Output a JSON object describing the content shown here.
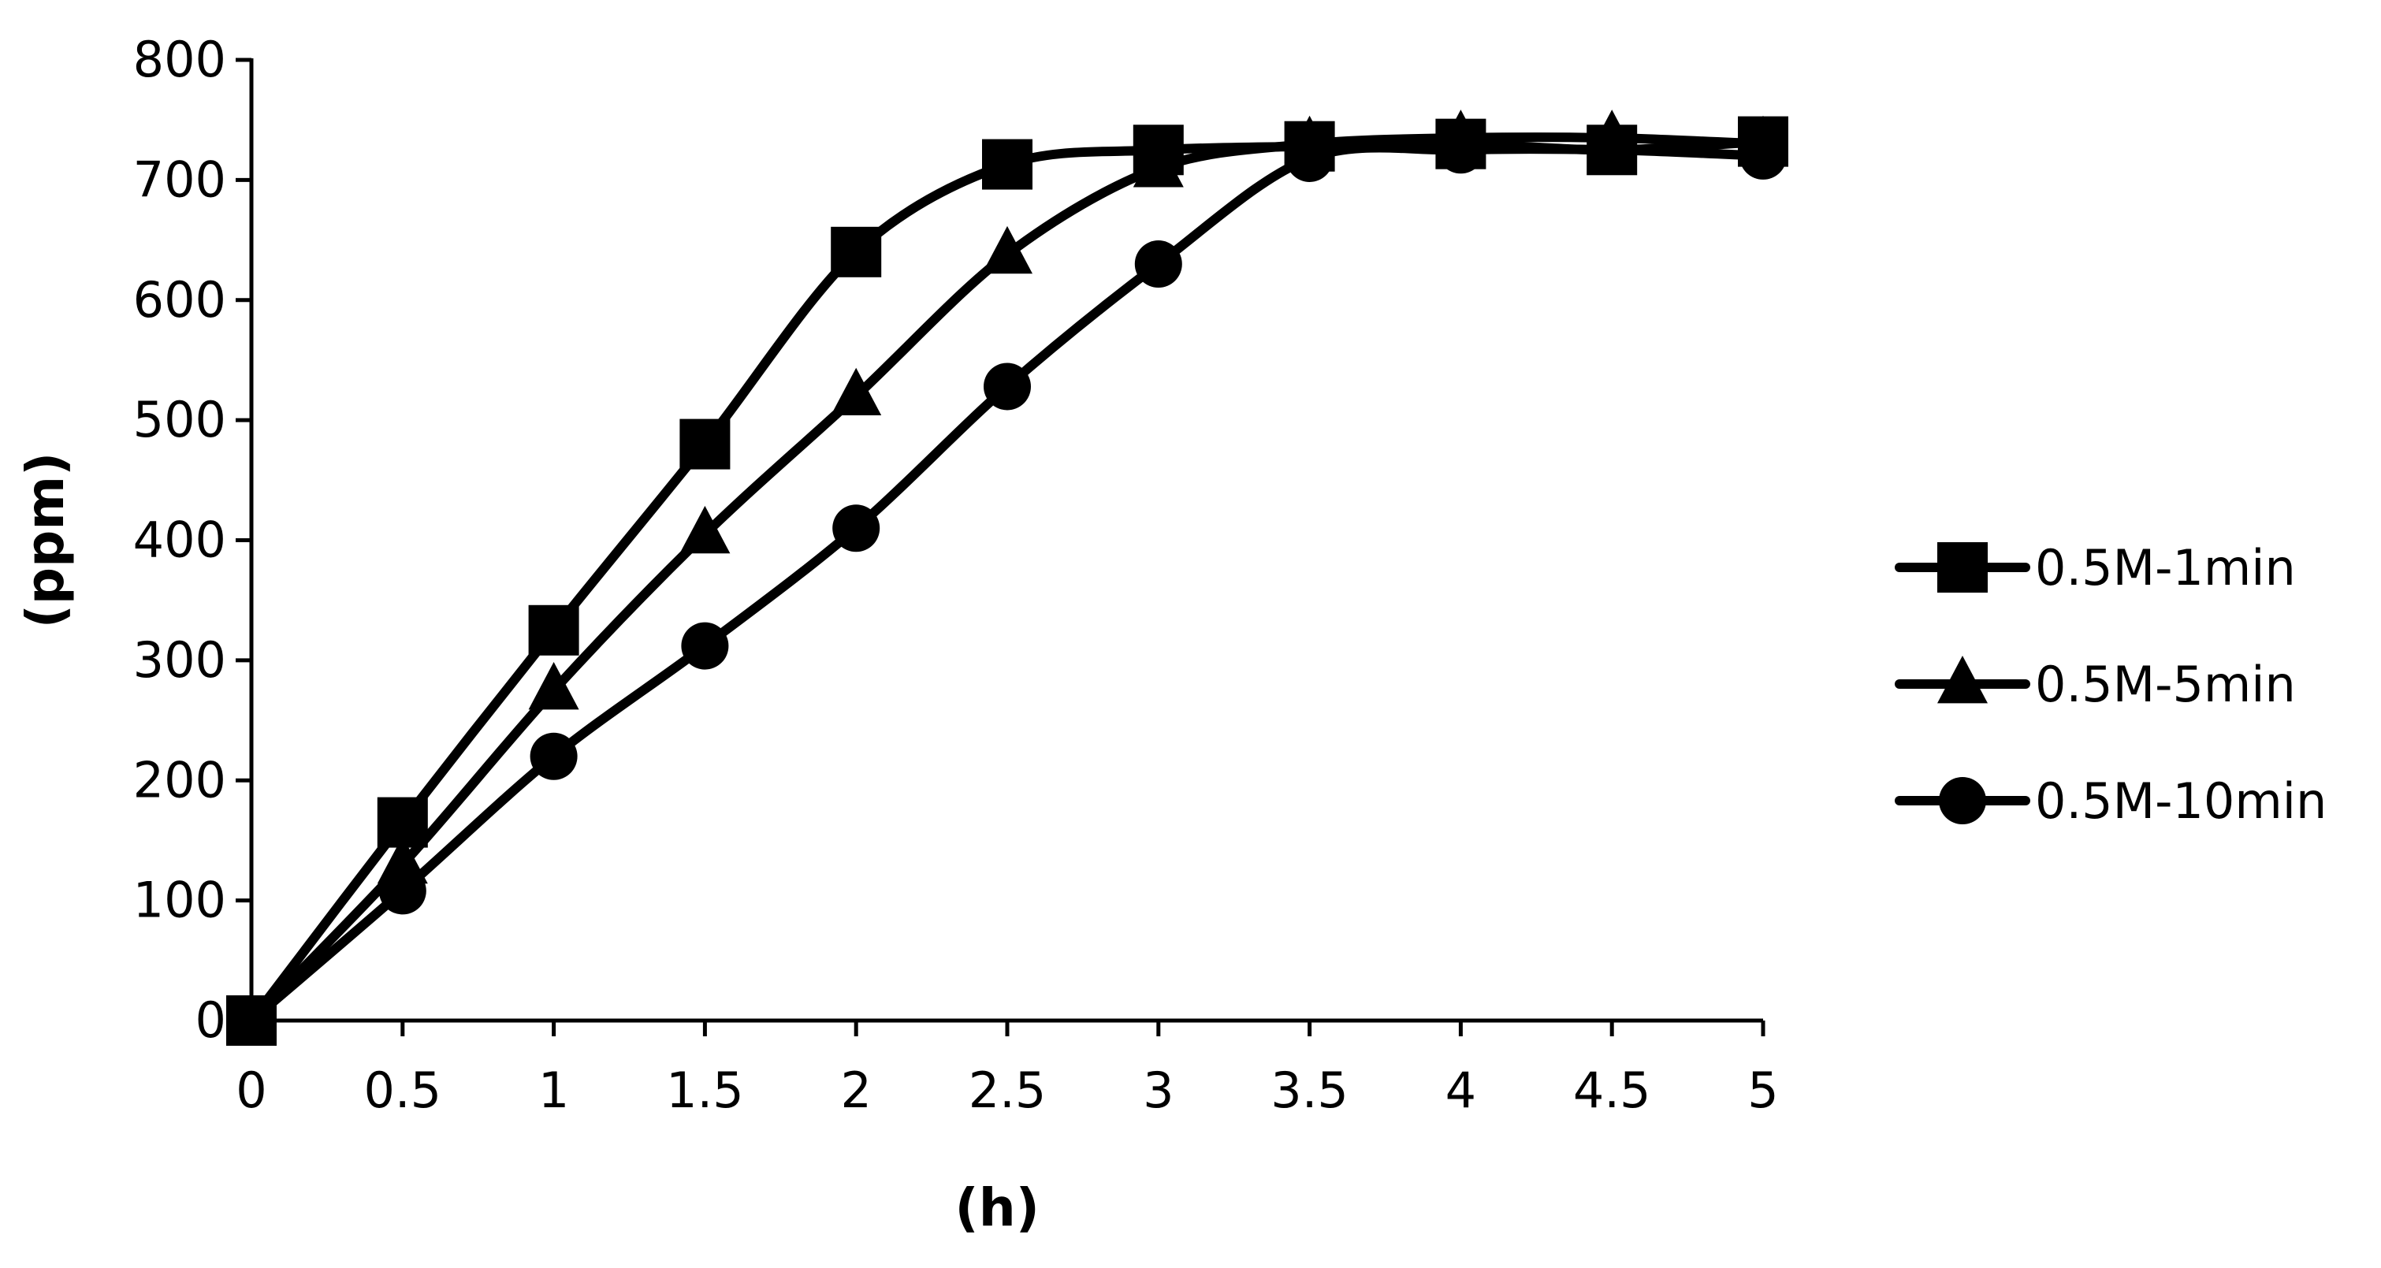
{
  "chart_data": {
    "type": "line",
    "title": "",
    "xlabel": "(h)",
    "ylabel": "(ppm)",
    "x": [
      0,
      0.5,
      1,
      1.5,
      2,
      2.5,
      3,
      3.5,
      4,
      4.5,
      5
    ],
    "x_ticks": [
      "0",
      "0.5",
      "1",
      "1.5",
      "2",
      "2.5",
      "3",
      "3.5",
      "4",
      "4.5",
      "5"
    ],
    "y_ticks": [
      "0",
      "100",
      "200",
      "300",
      "400",
      "500",
      "600",
      "700",
      "800"
    ],
    "xlim": [
      0,
      5
    ],
    "ylim": [
      0,
      800
    ],
    "grid": false,
    "legend_position": "right",
    "line_color": "#000000",
    "series": [
      {
        "name": "0.5M-1min",
        "marker": "square",
        "values": [
          0,
          165,
          325,
          480,
          640,
          713,
          725,
          728,
          730,
          725,
          732
        ]
      },
      {
        "name": "0.5M-5min",
        "marker": "triangle",
        "values": [
          0,
          130,
          275,
          405,
          520,
          638,
          710,
          730,
          735,
          735,
          730
        ]
      },
      {
        "name": "0.5M-10min",
        "marker": "circle",
        "values": [
          0,
          108,
          220,
          312,
          410,
          528,
          630,
          718,
          725,
          725,
          720
        ]
      }
    ]
  }
}
